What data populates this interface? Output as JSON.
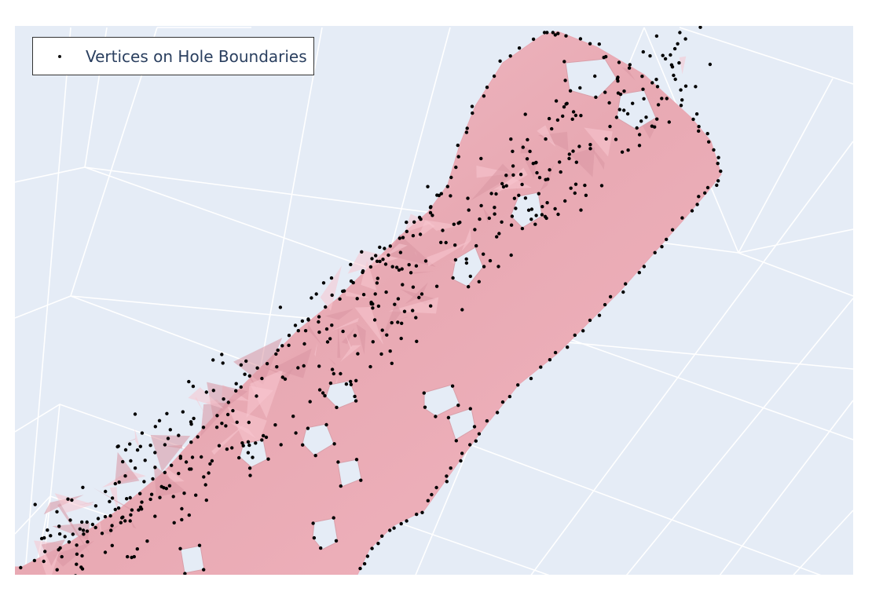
{
  "chart_data": {
    "type": "scatter",
    "projection": "3d",
    "title": "",
    "axes_visible": false,
    "grid": true,
    "legend_position": "top-left",
    "mesh_color": "#f4b6c2",
    "scene_background": "#e5ecf6",
    "series": [
      {
        "name": "Vertices on Hole Boundaries",
        "mode": "markers",
        "marker_color": "#000000"
      }
    ]
  }
}
